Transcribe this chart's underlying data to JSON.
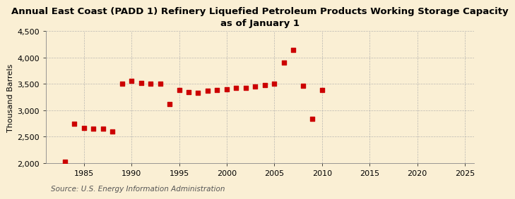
{
  "title": "Annual East Coast (PADD 1) Refinery Liquefied Petroleum Products Working Storage Capacity\nas of January 1",
  "ylabel": "Thousand Barrels",
  "source": "Source: U.S. Energy Information Administration",
  "background_color": "#faefd4",
  "marker_color": "#cc0000",
  "years": [
    1983,
    1984,
    1985,
    1986,
    1987,
    1988,
    1989,
    1990,
    1991,
    1992,
    1993,
    1994,
    1995,
    1996,
    1997,
    1998,
    1999,
    2000,
    2001,
    2002,
    2003,
    2004,
    2005,
    2006,
    2007,
    2008,
    2009,
    2010
  ],
  "values": [
    2030,
    2740,
    2660,
    2650,
    2650,
    2600,
    3510,
    3560,
    3520,
    3510,
    3500,
    3120,
    3380,
    3340,
    3330,
    3370,
    3380,
    3400,
    3420,
    3430,
    3450,
    3480,
    3500,
    3910,
    4140,
    3470,
    2840,
    3380
  ],
  "xlim": [
    1981,
    2026
  ],
  "ylim": [
    2000,
    4500
  ],
  "xticks": [
    1985,
    1990,
    1995,
    2000,
    2005,
    2010,
    2015,
    2020,
    2025
  ],
  "yticks": [
    2000,
    2500,
    3000,
    3500,
    4000,
    4500
  ],
  "title_fontsize": 9.5,
  "axis_fontsize": 8,
  "source_fontsize": 7.5
}
